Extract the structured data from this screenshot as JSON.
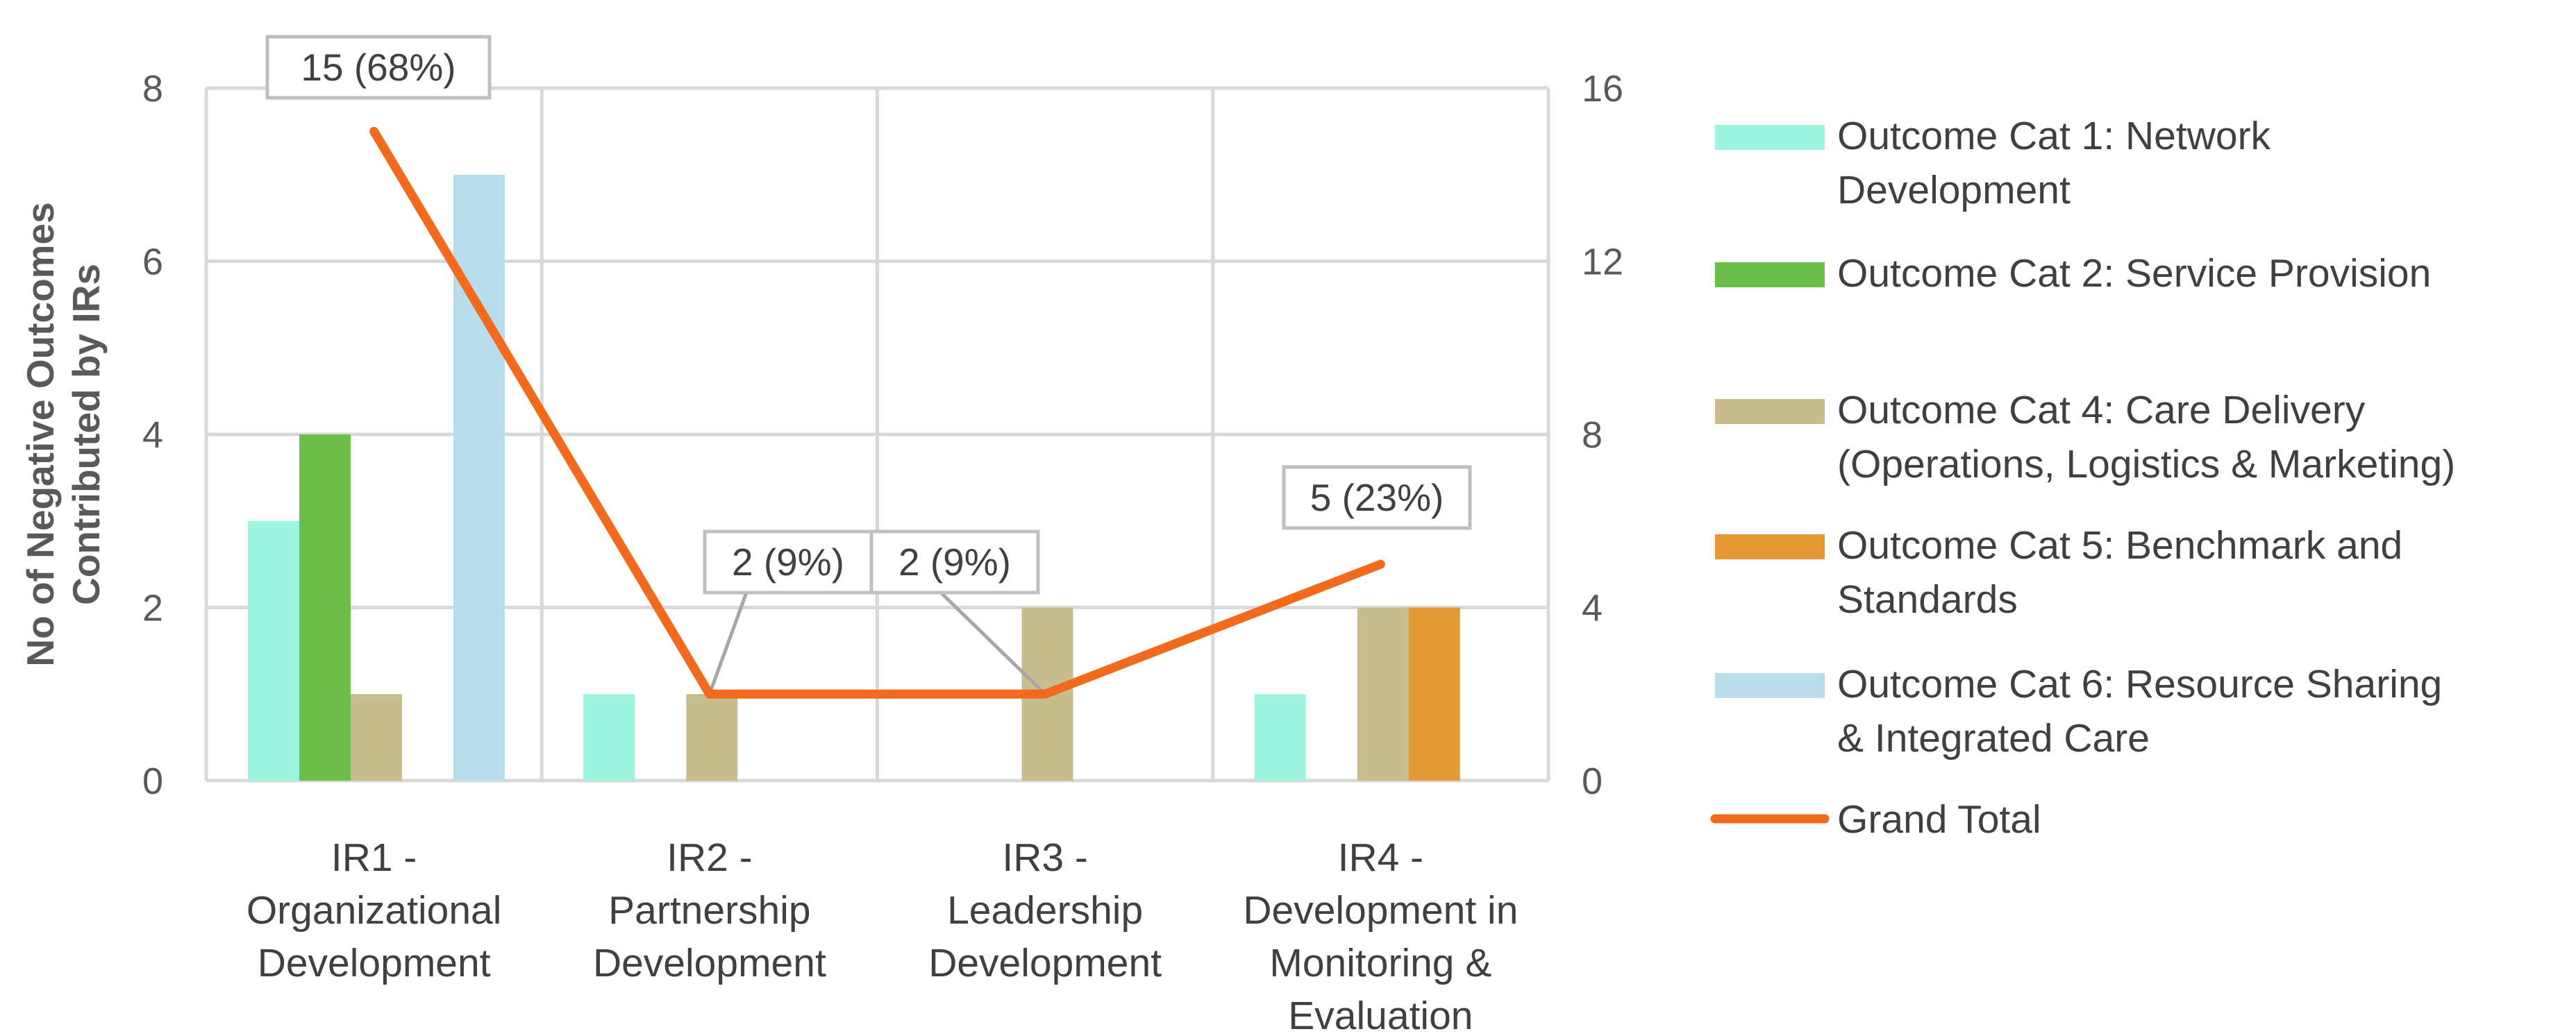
{
  "chart_data": {
    "type": "bar",
    "title": "",
    "ylabel": "No of Negative Outcomes Contributed by IRs",
    "xlabel": "",
    "ylim": [
      0,
      8
    ],
    "y2lim": [
      0,
      16
    ],
    "yticks": [
      "0",
      "2",
      "4",
      "6",
      "8"
    ],
    "y2ticks": [
      "0",
      "4",
      "8",
      "12",
      "16"
    ],
    "categories": [
      [
        "IR1 -",
        "Organizational",
        "Development"
      ],
      [
        "IR2 -",
        "Partnership",
        "Development"
      ],
      [
        "IR3 -",
        "Leadership",
        "Development"
      ],
      [
        "IR4 -",
        "Development in",
        "Monitoring &",
        "Evaluation"
      ]
    ],
    "series": [
      {
        "name": "Outcome Cat 1: Network Development",
        "legend_lines": [
          "Outcome Cat 1: Network",
          "Development"
        ],
        "color": "#9ef4df",
        "values": [
          3,
          1,
          0,
          1
        ]
      },
      {
        "name": "Outcome Cat 2: Service Provision",
        "legend_lines": [
          "Outcome Cat 2: Service Provision"
        ],
        "color": "#6cbf4b",
        "values": [
          4,
          0,
          0,
          0
        ]
      },
      {
        "name": "Outcome Cat 4: Care Delivery (Operations, Logistics & Marketing)",
        "legend_lines": [
          "Outcome Cat 4: Care Delivery",
          "(Operations, Logistics & Marketing)"
        ],
        "color": "#c8bd8e",
        "values": [
          1,
          1,
          2,
          2
        ]
      },
      {
        "name": "Outcome Cat 5: Benchmark and Standards",
        "legend_lines": [
          "Outcome Cat 5: Benchmark and",
          "Standards"
        ],
        "color": "#e39a35",
        "values": [
          0,
          0,
          0,
          2
        ]
      },
      {
        "name": "Outcome Cat 6: Resource Sharing & Integrated Care",
        "legend_lines": [
          "Outcome Cat 6: Resource Sharing",
          "& Integrated Care"
        ],
        "color": "#b9ddec",
        "values": [
          7,
          0,
          0,
          0
        ]
      }
    ],
    "line": {
      "name": "Grand Total",
      "axis": "secondary",
      "color": "#f26b1d",
      "values": [
        15,
        2,
        2,
        5
      ],
      "labels": [
        "15 (68%)",
        "2 (9%)",
        "2 (9%)",
        "5 (23%)"
      ]
    }
  }
}
